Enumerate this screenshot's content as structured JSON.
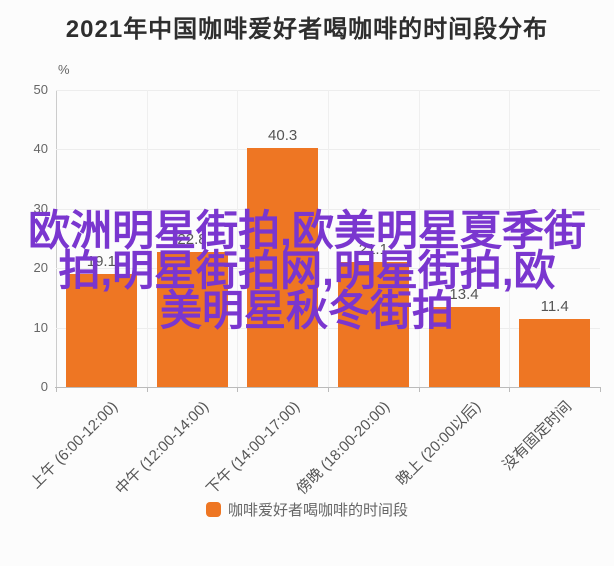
{
  "title": "2021年中国咖啡爱好者喝咖啡的时间段分布",
  "y_axis": {
    "unit": "%",
    "ticks": [
      0,
      10,
      20,
      30,
      40,
      50
    ],
    "max": 50
  },
  "chart_data": {
    "type": "bar",
    "title": "2021年中国咖啡爱好者喝咖啡的时间段分布",
    "categories": [
      "上午 (6:00-12:00)",
      "中午 (12:00-14:00)",
      "下午 (14:00-17:00)",
      "傍晚 (18:00-20:00)",
      "晚上 (20:00以后)",
      "没有固定时间"
    ],
    "values": [
      19.1,
      22.8,
      40.3,
      21.1,
      13.4,
      11.4
    ],
    "data_labels": [
      "19.1",
      "22.8",
      "40.3",
      "21.1",
      "13.4",
      "11.4"
    ],
    "xlabel": "",
    "ylabel": "%",
    "ylim": [
      0,
      50
    ],
    "grid": true,
    "legend_position": "bottom",
    "series_name": "咖啡爱好者喝咖啡的时间段"
  },
  "legend": {
    "label": "咖啡爱好者喝咖啡的时间段",
    "swatch_color": "#EE7623"
  },
  "watermark": {
    "lines": [
      "欧洲明星街拍,欧美明星夏季街",
      "拍,明星街拍网,明星街拍,欧",
      "美明星秋冬街拍"
    ],
    "color": "#7A36CF"
  },
  "colors": {
    "bar": "#EE7623",
    "title_text": "#2e2e2e",
    "axis_text": "#666666",
    "data_label_text": "#555555",
    "background": "#fcfcfc"
  }
}
